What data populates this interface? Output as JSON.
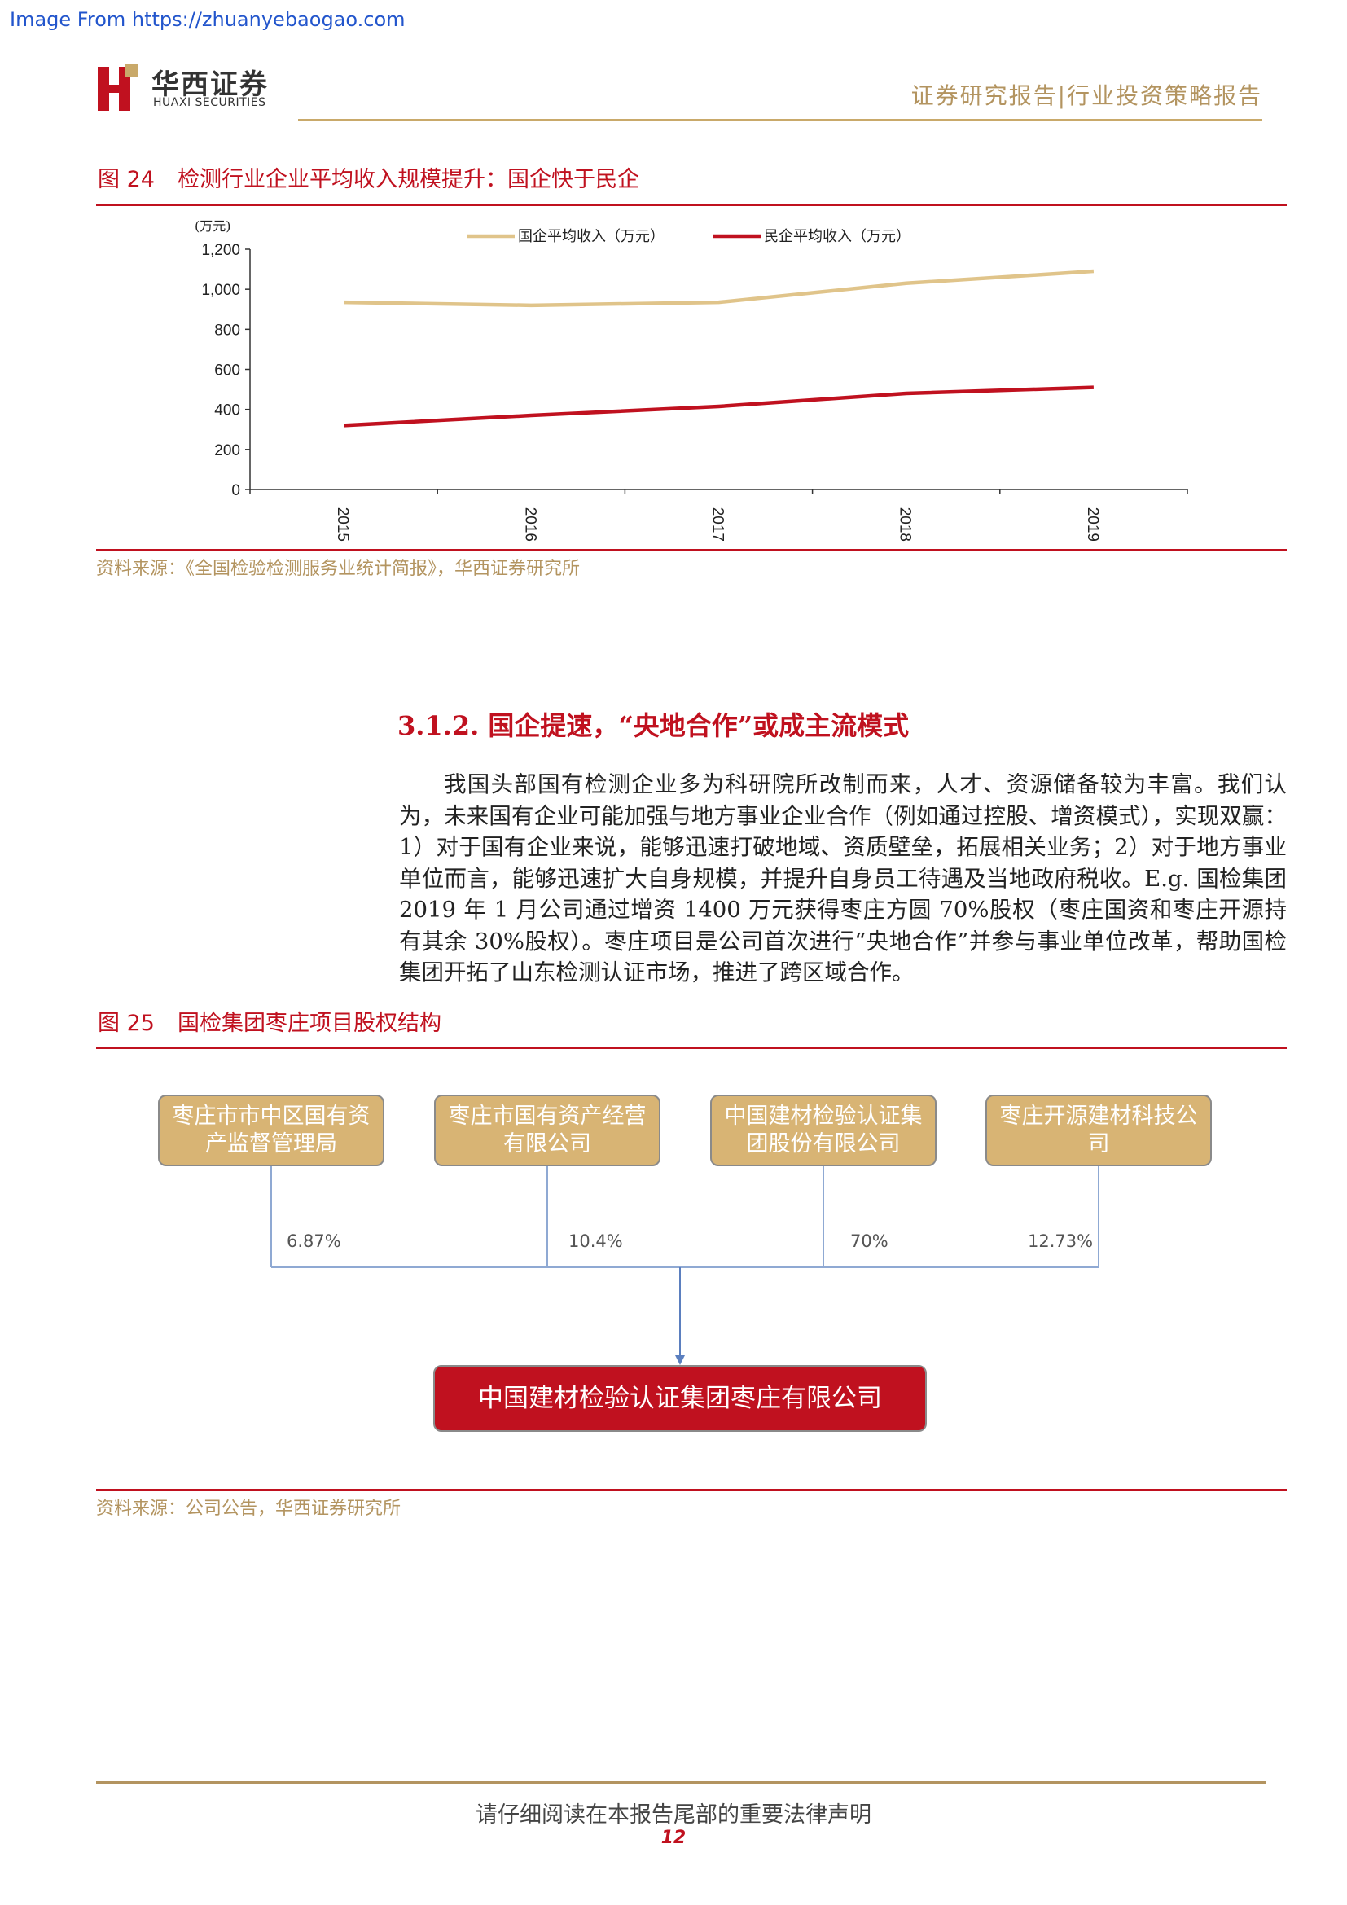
{
  "watermark": "Image From https://zhuanyebaogao.com",
  "header": {
    "logo_cn": "华西证券",
    "logo_en": "HUAXI SECURITIES",
    "report_type": "证券研究报告|行业投资策略报告"
  },
  "figure24": {
    "number": "图 24",
    "title": "检测行业企业平均收入规模提升：国企快于民企",
    "source": "资料来源：《全国检验检测服务业统计简报》，华西证券研究所"
  },
  "chart_data": {
    "type": "line",
    "ylabel": "(万元)",
    "ylim": [
      0,
      1200
    ],
    "yticks": [
      "0",
      "200",
      "400",
      "600",
      "800",
      "1,000",
      "1,200"
    ],
    "x": [
      "2015",
      "2016",
      "2017",
      "2018",
      "2019"
    ],
    "legend_position": "top",
    "grid": false,
    "series": [
      {
        "name": "国企平均收入（万元）",
        "color": "#e0c48a",
        "values": [
          935,
          920,
          935,
          1030,
          1090
        ]
      },
      {
        "name": "民企平均收入（万元）",
        "color": "#c0111f",
        "values": [
          320,
          370,
          415,
          480,
          510
        ]
      }
    ]
  },
  "section": {
    "heading": "3.1.2. 国企提速，“央地合作”或成主流模式",
    "paragraph": "我国头部国有检测企业多为科研院所改制而来，人才、资源储备较为丰富。我们认为，未来国有企业可能加强与地方事业企业合作（例如通过控股、增资模式），实现双赢：1）对于国有企业来说，能够迅速打破地域、资质壁垒，拓展相关业务；2）对于地方事业单位而言，能够迅速扩大自身规模，并提升自身员工待遇及当地政府税收。E.g. 国检集团 2019 年 1 月公司通过增资 1400 万元获得枣庄方圆 70%股权（枣庄国资和枣庄开源持有其余 30%股权）。枣庄项目是公司首次进行“央地合作”并参与事业单位改革，帮助国检集团开拓了山东检测认证市场，推进了跨区域合作。"
  },
  "figure25": {
    "number": "图 25",
    "title": "国检集团枣庄项目股权结构",
    "source": "资料来源：公司公告，华西证券研究所",
    "shareholders": [
      {
        "name": "枣庄市市中区国有资产监督管理局",
        "pct": "6.87%"
      },
      {
        "name": "枣庄市国有资产经营有限公司",
        "pct": "10.4%"
      },
      {
        "name": "中国建材检验认证集团股份有限公司",
        "pct": "70%"
      },
      {
        "name": "枣庄开源建材科技公司",
        "pct": "12.73%"
      }
    ],
    "target": "中国建材检验认证集团枣庄有限公司"
  },
  "footer": {
    "note": "请仔细阅读在本报告尾部的重要法律声明",
    "page": "12"
  }
}
